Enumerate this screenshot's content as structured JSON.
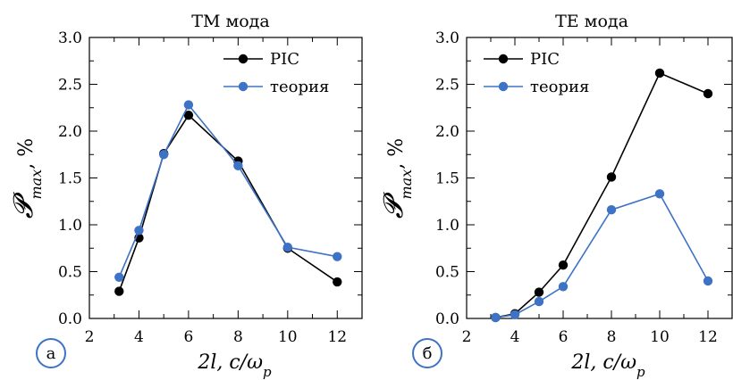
{
  "colors": {
    "pic": "#000000",
    "theory": "#3e72c5",
    "badge": "#3e72c5",
    "axis": "#000000"
  },
  "chart_data": [
    {
      "type": "line",
      "title": "TM мода",
      "badge": "а",
      "xlabel": "2l, c/ω",
      "xlabel_sub": "p",
      "ylabel": "𝓟",
      "ylabel_sub": "max",
      "ylabel_unit": ", %",
      "xlim": [
        2,
        13
      ],
      "ylim": [
        0,
        3
      ],
      "xticks": [
        2,
        4,
        6,
        8,
        10,
        12
      ],
      "yticks": [
        "0.0",
        "0.5",
        "1.0",
        "1.5",
        "2.0",
        "2.5",
        "3.0"
      ],
      "grid": false,
      "legend": "top-right",
      "series": [
        {
          "name": "PIC",
          "color": "#000000",
          "x": [
            3.2,
            4,
            5,
            6,
            8,
            10,
            12
          ],
          "y": [
            0.29,
            0.86,
            1.76,
            2.17,
            1.68,
            0.75,
            0.39
          ]
        },
        {
          "name": "теория",
          "color": "#3e72c5",
          "x": [
            3.2,
            4,
            5,
            6,
            8,
            10,
            12
          ],
          "y": [
            0.44,
            0.94,
            1.75,
            2.28,
            1.63,
            0.76,
            0.66
          ]
        }
      ]
    },
    {
      "type": "line",
      "title": "TE мода",
      "badge": "б",
      "xlabel": "2l, c/ω",
      "xlabel_sub": "p",
      "ylabel": "𝓟",
      "ylabel_sub": "max",
      "ylabel_unit": ", %",
      "xlim": [
        2,
        13
      ],
      "ylim": [
        0,
        3
      ],
      "xticks": [
        2,
        4,
        6,
        8,
        10,
        12
      ],
      "yticks": [
        "0.0",
        "0.5",
        "1.0",
        "1.5",
        "2.0",
        "2.5",
        "3.0"
      ],
      "grid": false,
      "legend": "top-left",
      "series": [
        {
          "name": "PIC",
          "color": "#000000",
          "x": [
            3.2,
            4,
            5,
            6,
            8,
            10,
            12
          ],
          "y": [
            0.01,
            0.05,
            0.28,
            0.57,
            1.51,
            2.62,
            2.4
          ]
        },
        {
          "name": "теория",
          "color": "#3e72c5",
          "x": [
            3.2,
            4,
            5,
            6,
            8,
            10,
            12
          ],
          "y": [
            0.01,
            0.04,
            0.18,
            0.34,
            1.16,
            1.33,
            0.4
          ]
        }
      ]
    }
  ]
}
